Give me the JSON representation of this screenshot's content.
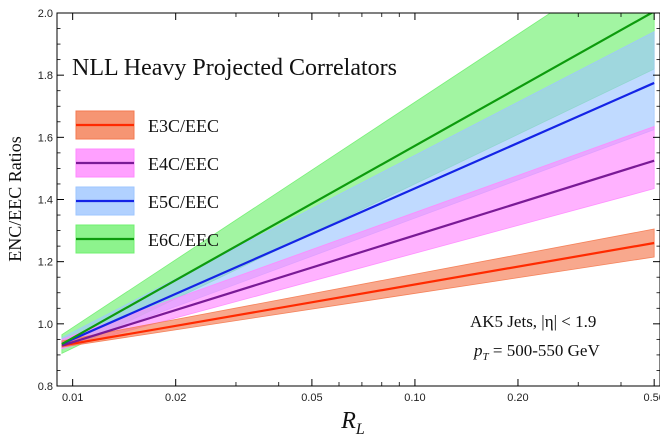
{
  "chart_data": {
    "type": "line",
    "title": "NLL Heavy Projected Correlators",
    "xlabel_main": "R",
    "xlabel_sub": "L",
    "ylabel": "ENC/EEC Ratios",
    "x_scale": "log",
    "xlim": [
      0.009,
      0.52
    ],
    "ylim": [
      0.8,
      2.0
    ],
    "x_ticks": [
      {
        "value": 0.01,
        "label": "0.01"
      },
      {
        "value": 0.02,
        "label": "0.02"
      },
      {
        "value": 0.05,
        "label": "0.05"
      },
      {
        "value": 0.1,
        "label": "0.10"
      },
      {
        "value": 0.2,
        "label": "0.20"
      },
      {
        "value": 0.5,
        "label": "0.50"
      }
    ],
    "y_ticks": [
      {
        "value": 0.8,
        "label": "0.8"
      },
      {
        "value": 1.0,
        "label": "1.0"
      },
      {
        "value": 1.2,
        "label": "1.2"
      },
      {
        "value": 1.4,
        "label": "1.4"
      },
      {
        "value": 1.6,
        "label": "1.6"
      },
      {
        "value": 1.8,
        "label": "1.8"
      },
      {
        "value": 2.0,
        "label": "2.0"
      }
    ],
    "x_minor_ticks": [
      0.009,
      0.03,
      0.04,
      0.06,
      0.07,
      0.08,
      0.09,
      0.3,
      0.4
    ],
    "grid": false,
    "legend_position": "upper-left",
    "annotations": {
      "line1": "AK5 Jets, |η| < 1.9",
      "line2_symbol": "p",
      "line2_sub": "T",
      "line2_rest": " = 500-550 GeV"
    },
    "series": [
      {
        "name": "E3C/EEC",
        "line_color": "#ff2a00",
        "band_color": "#f47a50",
        "x": [
          0.0093,
          0.5
        ],
        "y": [
          0.93,
          1.26
        ],
        "band_low": [
          0.925,
          1.215
        ],
        "band_high": [
          0.945,
          1.305
        ]
      },
      {
        "name": "E4C/EEC",
        "line_color": "#7a1a96",
        "band_color": "#ff88ff",
        "x": [
          0.0093,
          0.5
        ],
        "y": [
          0.93,
          1.525
        ],
        "band_low": [
          0.92,
          1.435
        ],
        "band_high": [
          0.95,
          1.635
        ]
      },
      {
        "name": "E5C/EEC",
        "line_color": "#1424e6",
        "band_color": "#9ec6ff",
        "x": [
          0.0093,
          0.5
        ],
        "y": [
          0.935,
          1.775
        ],
        "band_low": [
          0.92,
          1.625
        ],
        "band_high": [
          0.955,
          1.94
        ]
      },
      {
        "name": "E6C/EEC",
        "line_color": "#0d9b0d",
        "band_color": "#70f070",
        "x": [
          0.0093,
          0.5
        ],
        "y": [
          0.935,
          2.005
        ],
        "band_low": [
          0.905,
          1.82
        ],
        "band_high": [
          0.965,
          2.22
        ]
      }
    ]
  }
}
